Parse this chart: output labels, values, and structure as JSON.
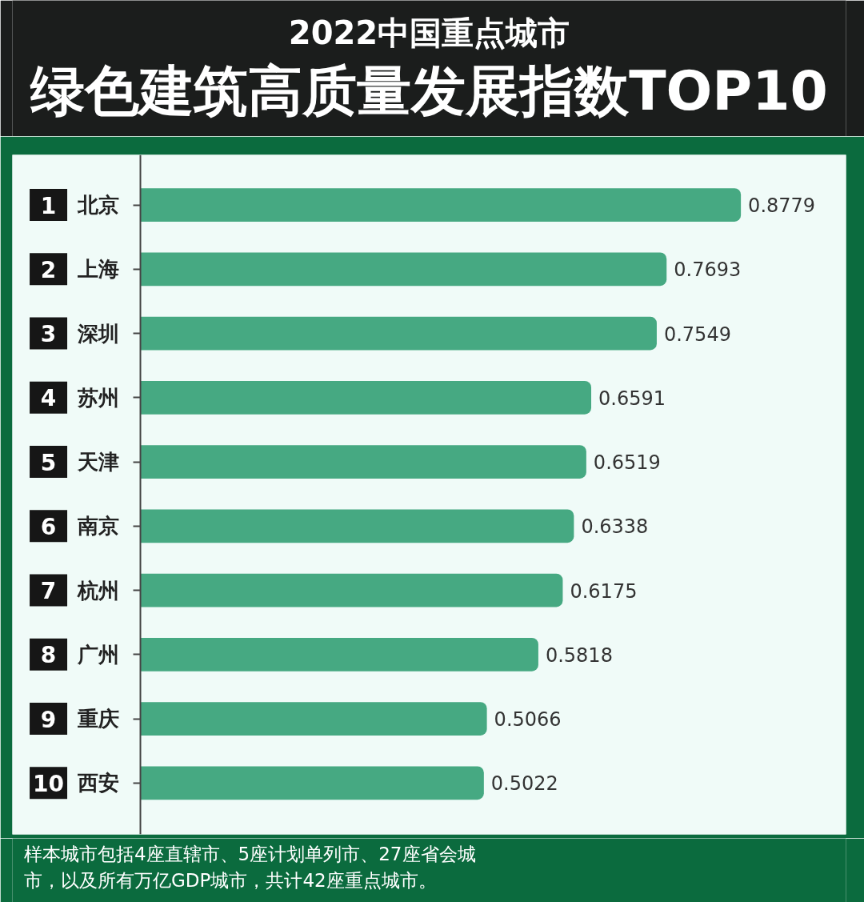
{
  "chart_data": {
    "type": "bar",
    "orientation": "horizontal",
    "title": "2022中国重点城市",
    "subtitle": "绿色建筑高质量发展指数TOP10",
    "categories": [
      "1 北京",
      "2 上海",
      "3 深圳",
      "4 苏州",
      "5 天津",
      "6 南京",
      "7 杭州",
      "8 广州",
      "9 重庆",
      "10 西安"
    ],
    "values": [
      0.8779,
      0.7693,
      0.7549,
      0.6591,
      0.6519,
      0.6338,
      0.6175,
      0.5818,
      0.5066,
      0.5022
    ],
    "color": "#46a982",
    "data_labels": true,
    "annotations": [
      "样本城市包括4座直辖市、5座计划单列市、27座省会城市，以及所有万亿GDP城市，共计42座重点城市。"
    ]
  }
}
